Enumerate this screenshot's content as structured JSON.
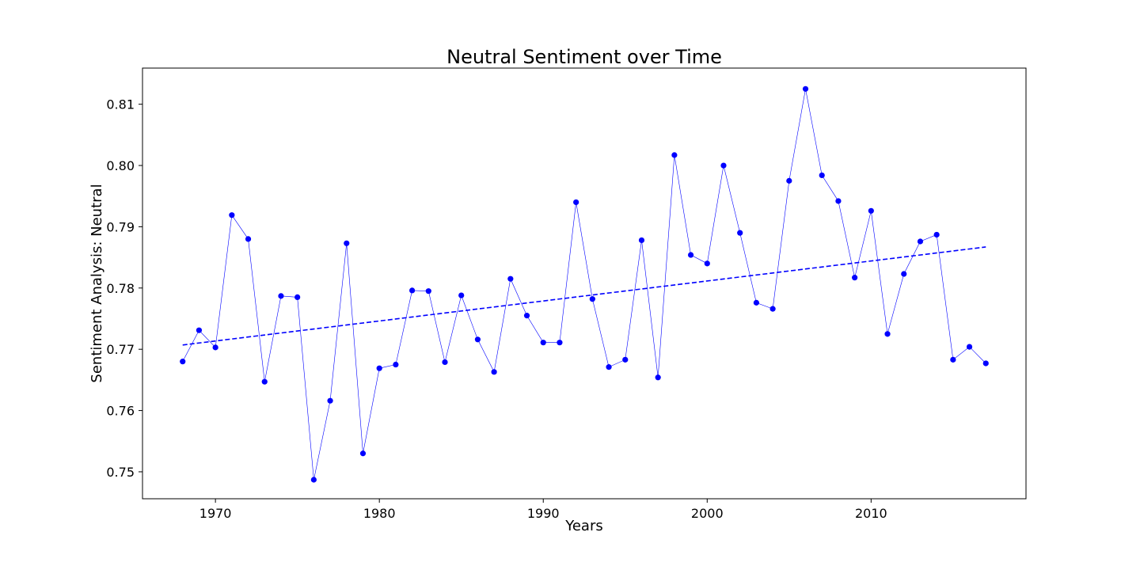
{
  "chart_data": {
    "type": "line",
    "title": "Neutral Sentiment over Time",
    "xlabel": "Years",
    "ylabel": "Sentiment Analysis: Neutral",
    "xlim": [
      1965.55,
      2019.45
    ],
    "ylim": [
      0.7456,
      0.8159
    ],
    "xticks": [
      1970,
      1980,
      1990,
      2000,
      2010
    ],
    "yticks": [
      0.75,
      0.76,
      0.77,
      0.78,
      0.79,
      0.8,
      0.81
    ],
    "ytick_labels": [
      "0.75",
      "0.76",
      "0.77",
      "0.78",
      "0.79",
      "0.80",
      "0.81"
    ],
    "grid": false,
    "series": [
      {
        "color": "#0000ff",
        "style": "line-with-markers",
        "x": [
          1968,
          1969,
          1970,
          1971,
          1972,
          1973,
          1974,
          1975,
          1976,
          1977,
          1978,
          1979,
          1980,
          1981,
          1982,
          1983,
          1984,
          1985,
          1986,
          1987,
          1988,
          1989,
          1990,
          1991,
          1992,
          1993,
          1994,
          1995,
          1996,
          1997,
          1998,
          1999,
          2000,
          2001,
          2002,
          2003,
          2004,
          2005,
          2006,
          2007,
          2008,
          2009,
          2010,
          2011,
          2012,
          2013,
          2014,
          2015,
          2016,
          2017
        ],
        "y": [
          0.768,
          0.7731,
          0.7703,
          0.7919,
          0.788,
          0.7647,
          0.7787,
          0.7785,
          0.7487,
          0.7616,
          0.7873,
          0.753,
          0.7669,
          0.7675,
          0.7796,
          0.7795,
          0.7679,
          0.7788,
          0.7716,
          0.7663,
          0.7815,
          0.7755,
          0.7711,
          0.7711,
          0.794,
          0.7782,
          0.7671,
          0.7683,
          0.7878,
          0.7654,
          0.8017,
          0.7854,
          0.784,
          0.8,
          0.789,
          0.7776,
          0.7766,
          0.7975,
          0.8125,
          0.7984,
          0.7942,
          0.7817,
          0.7926,
          0.7725,
          0.7823,
          0.7876,
          0.7887,
          0.7683,
          0.7704,
          0.7677
        ]
      },
      {
        "color": "#0000ff",
        "style": "dashed-trendline",
        "x": [
          1968,
          2017
        ],
        "y": [
          0.7707,
          0.7867
        ]
      }
    ]
  }
}
